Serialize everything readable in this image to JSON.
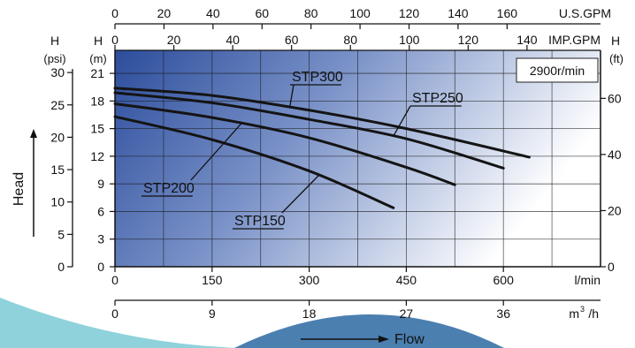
{
  "chart_data": {
    "type": "line",
    "speed_label": "2900r/min",
    "axis_label_head": "Head",
    "axis_label_flow": "Flow",
    "top_axis_us_gpm": {
      "unit": "U.S.GPM",
      "ticks": [
        "0",
        "20",
        "40",
        "60",
        "80",
        "100",
        "120",
        "140",
        "160"
      ],
      "values": [
        0,
        20,
        40,
        60,
        80,
        100,
        120,
        140,
        160
      ]
    },
    "top_axis_imp_gpm": {
      "unit": "IMP.GPM",
      "ticks": [
        "0",
        "20",
        "40",
        "60",
        "80",
        "100",
        "120",
        "140"
      ],
      "values": [
        0,
        20,
        40,
        60,
        80,
        100,
        120,
        140
      ]
    },
    "bottom_axis_lmin": {
      "unit": "l/min",
      "ticks": [
        "0",
        "150",
        "300",
        "450",
        "600"
      ],
      "values": [
        0,
        150,
        300,
        450,
        600
      ],
      "xlim": [
        0,
        750
      ]
    },
    "bottom_axis_m3h": {
      "unit_base": "m",
      "unit_sup": "3",
      "unit_tail": "/h",
      "ticks": [
        "0",
        "9",
        "18",
        "27",
        "36"
      ],
      "values": [
        0,
        9,
        18,
        27,
        36
      ]
    },
    "left_axis_psi": {
      "header_h": "H",
      "unit": "(psi)",
      "ticks": [
        "0",
        "5",
        "10",
        "15",
        "20",
        "25",
        "30"
      ],
      "values": [
        0,
        5,
        10,
        15,
        20,
        25,
        30
      ]
    },
    "left_axis_m": {
      "header_h": "H",
      "unit": "(m)",
      "ticks": [
        "0",
        "3",
        "6",
        "9",
        "12",
        "15",
        "18",
        "21"
      ],
      "values": [
        0,
        3,
        6,
        9,
        12,
        15,
        18,
        21
      ],
      "ylim": [
        0,
        23.5
      ]
    },
    "right_axis_ft": {
      "header_h": "H",
      "unit": "(ft)",
      "ticks": [
        "0",
        "20",
        "40",
        "60"
      ],
      "values": [
        0,
        20,
        40,
        60
      ]
    },
    "series": [
      {
        "name": "STP300",
        "x": [
          0,
          150,
          300,
          450,
          640
        ],
        "y": [
          19.4,
          18.6,
          17.0,
          15.0,
          11.9
        ]
      },
      {
        "name": "STP250",
        "x": [
          0,
          150,
          300,
          450,
          600
        ],
        "y": [
          18.9,
          17.8,
          16.0,
          13.9,
          10.7
        ]
      },
      {
        "name": "STP200",
        "x": [
          0,
          150,
          300,
          450,
          525
        ],
        "y": [
          17.7,
          16.2,
          14.0,
          10.8,
          8.9
        ]
      },
      {
        "name": "STP150",
        "x": [
          0,
          150,
          300,
          430
        ],
        "y": [
          16.3,
          13.8,
          10.4,
          6.4
        ]
      }
    ]
  },
  "theme": {
    "gradient_dark": "#2c4d9c",
    "gradient_mid": "#7a92c8",
    "gradient_light": "#ffffff",
    "curve_color": "#141414",
    "swoosh_blue": "#4b7fb0",
    "swoosh_teal": "#8fd2dc"
  }
}
